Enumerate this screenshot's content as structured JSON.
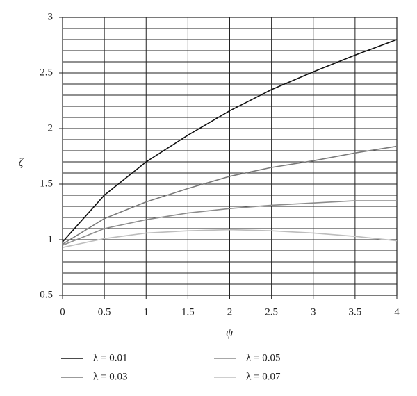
{
  "chart_data": {
    "type": "line",
    "x_label": "ψ",
    "y_label": "ζ",
    "x": [
      0,
      0.5,
      1,
      1.5,
      2,
      2.5,
      3,
      3.5,
      4
    ],
    "series": [
      {
        "name": "λ = 0.01",
        "color": "#111111",
        "values": [
          0.98,
          1.4,
          1.7,
          1.94,
          2.16,
          2.35,
          2.51,
          2.66,
          2.8
        ]
      },
      {
        "name": "λ = 0.03",
        "color": "#7a7a7a",
        "values": [
          0.96,
          1.19,
          1.34,
          1.46,
          1.57,
          1.65,
          1.71,
          1.78,
          1.84
        ]
      },
      {
        "name": "λ = 0.05",
        "color": "#8c8c8c",
        "values": [
          0.95,
          1.1,
          1.18,
          1.24,
          1.28,
          1.31,
          1.33,
          1.35,
          1.35
        ]
      },
      {
        "name": "λ = 0.07",
        "color": "#bdbdbd",
        "values": [
          0.93,
          1.01,
          1.06,
          1.08,
          1.09,
          1.08,
          1.06,
          1.03,
          0.99
        ]
      }
    ],
    "xlim": [
      0,
      4
    ],
    "xticks": [
      0,
      0.5,
      1,
      1.5,
      2,
      2.5,
      3,
      3.5,
      4
    ],
    "ylim": [
      0.5,
      3
    ],
    "yticks": [
      0.5,
      1,
      1.5,
      2,
      2.5,
      3
    ],
    "ygrid": [
      0.6,
      0.7,
      0.8,
      0.9,
      1.1,
      1.2,
      1.3,
      1.4,
      1.6,
      1.7,
      1.8,
      1.9,
      2.1,
      2.2,
      2.3,
      2.4,
      2.6,
      2.7,
      2.8,
      2.9
    ],
    "grid": true
  }
}
